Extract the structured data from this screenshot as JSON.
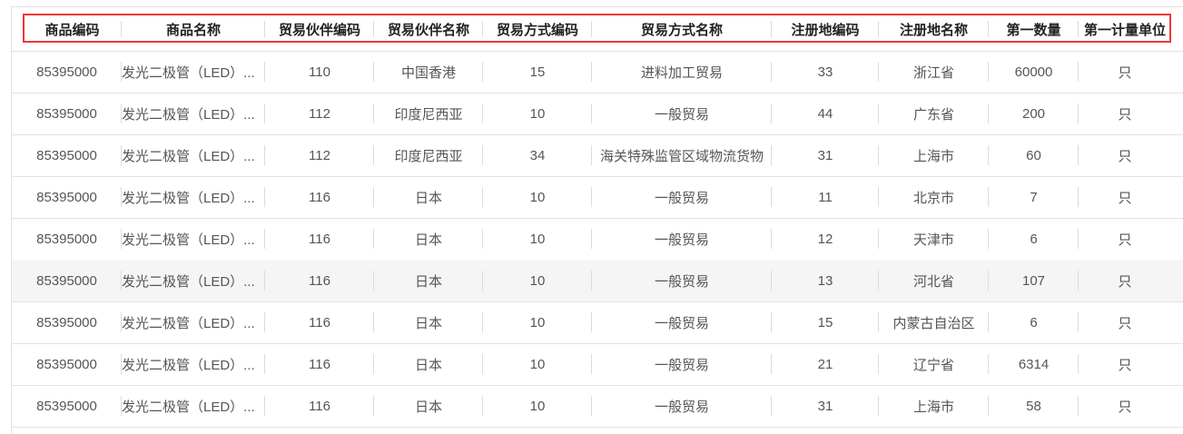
{
  "table": {
    "columns": [
      "商品编码",
      "商品名称",
      "贸易伙伴编码",
      "贸易伙伴名称",
      "贸易方式编码",
      "贸易方式名称",
      "注册地编码",
      "注册地名称",
      "第一数量",
      "第一计量单位"
    ],
    "rows": [
      [
        "85395000",
        "发光二极管（LED）...",
        "110",
        "中国香港",
        "15",
        "进料加工贸易",
        "33",
        "浙江省",
        "60000",
        "只"
      ],
      [
        "85395000",
        "发光二极管（LED）...",
        "112",
        "印度尼西亚",
        "10",
        "一般贸易",
        "44",
        "广东省",
        "200",
        "只"
      ],
      [
        "85395000",
        "发光二极管（LED）...",
        "112",
        "印度尼西亚",
        "34",
        "海关特殊监管区域物流货物",
        "31",
        "上海市",
        "60",
        "只"
      ],
      [
        "85395000",
        "发光二极管（LED）...",
        "116",
        "日本",
        "10",
        "一般贸易",
        "11",
        "北京市",
        "7",
        "只"
      ],
      [
        "85395000",
        "发光二极管（LED）...",
        "116",
        "日本",
        "10",
        "一般贸易",
        "12",
        "天津市",
        "6",
        "只"
      ],
      [
        "85395000",
        "发光二极管（LED）...",
        "116",
        "日本",
        "10",
        "一般贸易",
        "13",
        "河北省",
        "107",
        "只"
      ],
      [
        "85395000",
        "发光二极管（LED）...",
        "116",
        "日本",
        "10",
        "一般贸易",
        "15",
        "内蒙古自治区",
        "6",
        "只"
      ],
      [
        "85395000",
        "发光二极管（LED）...",
        "116",
        "日本",
        "10",
        "一般贸易",
        "21",
        "辽宁省",
        "6314",
        "只"
      ],
      [
        "85395000",
        "发光二极管（LED）...",
        "116",
        "日本",
        "10",
        "一般贸易",
        "31",
        "上海市",
        "58",
        "只"
      ]
    ],
    "highlighted_row": 5,
    "header_highlight_color": "#f2353b"
  }
}
